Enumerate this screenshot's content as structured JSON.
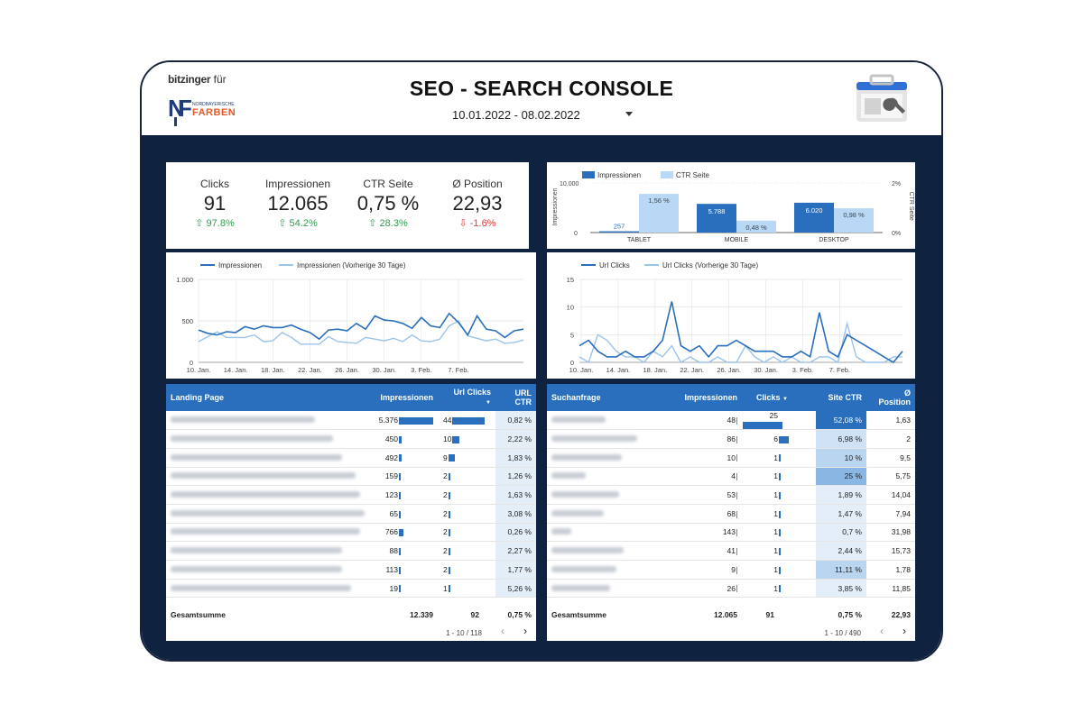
{
  "header": {
    "brand_prefix": "bitzinger",
    "brand_suffix": "für",
    "logo_text": "FARBEN",
    "logo_subtext": "NORDBAYERISCHE",
    "title": "SEO - SEARCH CONSOLE",
    "date_range": "10.01.2022 - 08.02.2022"
  },
  "kpis": [
    {
      "label": "Clicks",
      "value": "91",
      "change": "97.8%",
      "direction": "up"
    },
    {
      "label": "Impressionen",
      "value": "12.065",
      "change": "54.2%",
      "direction": "up"
    },
    {
      "label": "CTR Seite",
      "value": "0,75 %",
      "change": "28.3%",
      "direction": "up"
    },
    {
      "label": "Ø Position",
      "value": "22,93",
      "change": "-1.6%",
      "direction": "down"
    }
  ],
  "chart_data": [
    {
      "type": "bar",
      "legend": [
        "Impressionen",
        "CTR Seite"
      ],
      "categories": [
        "TABLET",
        "MOBILE",
        "DESKTOP"
      ],
      "series": [
        {
          "name": "Impressionen",
          "values": [
            257,
            5788,
            6020
          ],
          "labels": [
            "257",
            "5.788",
            "6.020"
          ],
          "color": "#2a6fbd"
        },
        {
          "name": "CTR Seite",
          "values": [
            1.56,
            0.48,
            0.98
          ],
          "labels": [
            "1,56 %",
            "0,48 %",
            "0,98 %"
          ],
          "color": "#b8d8f5"
        }
      ],
      "ylabel": "Impressionen",
      "ylabel_right": "CTR Seite",
      "yticks_left": [
        "10.000",
        "0"
      ],
      "yticks_right": [
        "2%",
        "0%"
      ],
      "ylim": [
        0,
        10000
      ],
      "ylim_right": [
        0,
        2
      ]
    },
    {
      "type": "line",
      "legend": [
        "Impressionen",
        "Impressionen (Vorherige 30 Tage)"
      ],
      "xticks": [
        "10. Jan.",
        "14. Jan.",
        "18. Jan.",
        "22. Jan.",
        "26. Jan.",
        "30. Jan.",
        "3. Feb.",
        "7. Feb."
      ],
      "yticks": [
        "1.000",
        "500",
        "0"
      ],
      "ylim": [
        0,
        1000
      ],
      "series": [
        {
          "name": "Impressionen",
          "color": "#2a6fbd",
          "values": [
            390,
            350,
            330,
            370,
            360,
            430,
            400,
            440,
            420,
            420,
            450,
            400,
            360,
            280,
            390,
            400,
            380,
            470,
            400,
            560,
            510,
            500,
            470,
            410,
            540,
            440,
            420,
            590,
            480,
            330,
            560,
            400,
            380,
            300,
            380,
            400
          ]
        },
        {
          "name": "Impressionen (Vorherige 30 Tage)",
          "color": "#9cc3ec",
          "values": [
            250,
            310,
            370,
            300,
            300,
            300,
            330,
            250,
            260,
            360,
            300,
            220,
            220,
            220,
            310,
            250,
            240,
            230,
            300,
            280,
            260,
            290,
            250,
            330,
            260,
            250,
            280,
            440,
            500,
            320,
            290,
            260,
            280,
            230,
            240,
            270
          ]
        }
      ]
    },
    {
      "type": "line",
      "legend": [
        "Url Clicks",
        "Url Clicks (Vorherige 30 Tage)"
      ],
      "xticks": [
        "10. Jan.",
        "14. Jan.",
        "18. Jan.",
        "22. Jan.",
        "26. Jan.",
        "30. Jan.",
        "3. Feb.",
        "7. Feb."
      ],
      "yticks": [
        "15",
        "10",
        "5",
        "0"
      ],
      "ylim": [
        0,
        15
      ],
      "series": [
        {
          "name": "Url Clicks",
          "color": "#2a6fbd",
          "values": [
            3,
            4,
            2,
            1,
            1,
            2,
            1,
            1,
            2,
            4,
            11,
            3,
            2,
            3,
            1,
            3,
            3,
            4,
            3,
            2,
            2,
            2,
            1,
            1,
            2,
            1,
            9,
            2,
            1,
            5,
            4,
            3,
            2,
            1,
            0,
            2
          ]
        },
        {
          "name": "Url Clicks (Vorherige 30 Tage)",
          "color": "#9cc3ec",
          "values": [
            1,
            0,
            5,
            4,
            2,
            1,
            1,
            0,
            2,
            1,
            3,
            0,
            1,
            0,
            0,
            1,
            0,
            0,
            3,
            1,
            0,
            1,
            0,
            1,
            0,
            0,
            1,
            1,
            0,
            7,
            1,
            0,
            0,
            0,
            1,
            1
          ]
        }
      ]
    }
  ],
  "landing_table": {
    "headers": {
      "col1": "Landing Page",
      "col2": "Impressionen",
      "col3": "Url Clicks",
      "col4a": "URL",
      "col4b": "CTR"
    },
    "rows": [
      {
        "imp": "5.376",
        "impv": 5376,
        "clicks": "44",
        "cv": 44,
        "ctr": "0,82 %"
      },
      {
        "imp": "450",
        "impv": 450,
        "clicks": "10",
        "cv": 10,
        "ctr": "2,22 %"
      },
      {
        "imp": "492",
        "impv": 492,
        "clicks": "9",
        "cv": 9,
        "ctr": "1,83 %"
      },
      {
        "imp": "159",
        "impv": 159,
        "clicks": "2",
        "cv": 2,
        "ctr": "1,26 %"
      },
      {
        "imp": "123",
        "impv": 123,
        "clicks": "2",
        "cv": 2,
        "ctr": "1,63 %"
      },
      {
        "imp": "65",
        "impv": 65,
        "clicks": "2",
        "cv": 2,
        "ctr": "3,08 %"
      },
      {
        "imp": "766",
        "impv": 766,
        "clicks": "2",
        "cv": 2,
        "ctr": "0,26 %"
      },
      {
        "imp": "88",
        "impv": 88,
        "clicks": "2",
        "cv": 2,
        "ctr": "2,27 %"
      },
      {
        "imp": "113",
        "impv": 113,
        "clicks": "2",
        "cv": 2,
        "ctr": "1,77 %"
      },
      {
        "imp": "19",
        "impv": 19,
        "clicks": "1",
        "cv": 1,
        "ctr": "5,26 %"
      }
    ],
    "total": {
      "label": "Gesamtsumme",
      "imp": "12.339",
      "clicks": "92",
      "ctr": "0,75 %"
    },
    "pager": "1 - 10 / 118"
  },
  "query_table": {
    "headers": {
      "col1": "Suchanfrage",
      "col2": "Impressionen",
      "col3": "Clicks",
      "col4": "Site CTR",
      "col5a": "Ø",
      "col5b": "Position"
    },
    "rows": [
      {
        "imp": "48",
        "clicks": "25",
        "cv": 25,
        "ctr": "52,08 %",
        "ctrv": 52.08,
        "pos": "1,63"
      },
      {
        "imp": "86",
        "clicks": "6",
        "cv": 6,
        "ctr": "6,98 %",
        "ctrv": 6.98,
        "pos": "2"
      },
      {
        "imp": "10",
        "clicks": "1",
        "cv": 1,
        "ctr": "10 %",
        "ctrv": 10,
        "pos": "9,5"
      },
      {
        "imp": "4",
        "clicks": "1",
        "cv": 1,
        "ctr": "25 %",
        "ctrv": 25,
        "pos": "5,75"
      },
      {
        "imp": "53",
        "clicks": "1",
        "cv": 1,
        "ctr": "1,89 %",
        "ctrv": 1.89,
        "pos": "14,04"
      },
      {
        "imp": "68",
        "clicks": "1",
        "cv": 1,
        "ctr": "1,47 %",
        "ctrv": 1.47,
        "pos": "7,94"
      },
      {
        "imp": "143",
        "clicks": "1",
        "cv": 1,
        "ctr": "0,7 %",
        "ctrv": 0.7,
        "pos": "31,98"
      },
      {
        "imp": "41",
        "clicks": "1",
        "cv": 1,
        "ctr": "2,44 %",
        "ctrv": 2.44,
        "pos": "15,73"
      },
      {
        "imp": "9",
        "clicks": "1",
        "cv": 1,
        "ctr": "11,11 %",
        "ctrv": 11.11,
        "pos": "1,78"
      },
      {
        "imp": "26",
        "clicks": "1",
        "cv": 1,
        "ctr": "3,85 %",
        "ctrv": 3.85,
        "pos": "11,85"
      }
    ],
    "total": {
      "label": "Gesamtsumme",
      "imp": "12.065",
      "clicks": "91",
      "ctr": "0,75 %",
      "pos": "22,93"
    },
    "pager": "1 - 10 / 490"
  }
}
